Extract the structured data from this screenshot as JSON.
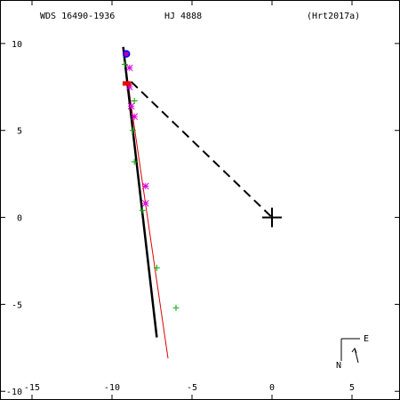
{
  "chart_data": {
    "type": "scatter",
    "header": {
      "left": "WDS 16490-1936",
      "center": "HJ 4888",
      "right": "(Hrt2017a)"
    },
    "xlim": [
      -17,
      8
    ],
    "ylim": [
      -10.5,
      12.5
    ],
    "x_ticks": [
      {
        "v": -15,
        "label": "-15"
      },
      {
        "v": -10,
        "label": "-10"
      },
      {
        "v": -5,
        "label": "-5"
      },
      {
        "v": 0,
        "label": "0"
      },
      {
        "v": 5,
        "label": "5"
      }
    ],
    "y_ticks": [
      {
        "v": 10,
        "label": "10"
      },
      {
        "v": 5,
        "label": "5"
      },
      {
        "v": 0,
        "label": "0"
      },
      {
        "v": -5,
        "label": "-5"
      },
      {
        "v": -10,
        "label": "-10"
      }
    ],
    "primary": {
      "x": 0,
      "y": 0
    },
    "black_line": [
      [
        -9.3,
        9.8
      ],
      [
        -7.2,
        -6.9
      ]
    ],
    "red_line": [
      [
        -9.3,
        9.6
      ],
      [
        -6.5,
        -8.1
      ]
    ],
    "dashed_line": [
      [
        -8.8,
        7.8
      ],
      [
        0,
        0
      ]
    ],
    "green_plus": [
      [
        -9.2,
        8.8
      ],
      [
        -8.6,
        6.7
      ],
      [
        -8.7,
        5.0
      ],
      [
        -8.6,
        3.2
      ],
      [
        -8.1,
        0.4
      ],
      [
        -7.2,
        -2.9
      ],
      [
        -6.0,
        -5.2
      ]
    ],
    "magenta_asterisk": [
      [
        -8.9,
        8.6
      ],
      [
        -8.9,
        7.5
      ],
      [
        -8.8,
        6.4
      ],
      [
        -8.6,
        5.8
      ],
      [
        -7.9,
        1.8
      ],
      [
        -7.9,
        0.8
      ]
    ],
    "red_points": [
      [
        -9.2,
        7.7
      ],
      [
        -8.95,
        7.7
      ]
    ],
    "blue_circle": [
      [
        -9.1,
        9.4
      ]
    ],
    "orientation": {
      "n": "N",
      "e": "E"
    }
  }
}
